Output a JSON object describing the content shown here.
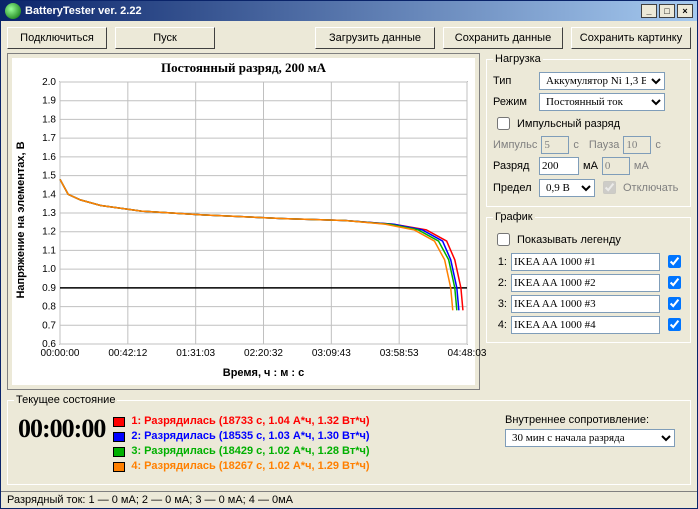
{
  "window": {
    "title": "BatteryTester ver. 2.22"
  },
  "toolbar": {
    "connect": "Подключиться",
    "start": "Пуск",
    "load": "Загрузить данные",
    "save": "Сохранить данные",
    "savepic": "Сохранить картинку"
  },
  "chart": {
    "title": "Постоянный разряд, 200 мА",
    "title_fontsize": 13,
    "ylabel": "Напряжение на элементах, В",
    "xlabel": "Время, ч : м : с",
    "ylim": [
      0.6,
      2.0
    ],
    "yticks": [
      0.6,
      0.7,
      0.8,
      0.9,
      1.0,
      1.1,
      1.2,
      1.3,
      1.4,
      1.5,
      1.6,
      1.7,
      1.8,
      1.9,
      2.0
    ],
    "xticks": [
      "00:00:00",
      "00:42:12",
      "01:31:03",
      "02:20:32",
      "03:09:43",
      "03:58:53",
      "04:48:03"
    ],
    "grid_color": "#c0c0c0",
    "background": "#ffffff",
    "threshold_y": 0.9,
    "threshold_color": "#000000",
    "series": [
      {
        "name": "IKEA AA 1000 #1",
        "color": "#ff0000",
        "x_end_frac": 0.99,
        "points": [
          [
            0,
            1.48
          ],
          [
            0.02,
            1.4
          ],
          [
            0.05,
            1.37
          ],
          [
            0.1,
            1.34
          ],
          [
            0.2,
            1.31
          ],
          [
            0.35,
            1.29
          ],
          [
            0.55,
            1.27
          ],
          [
            0.7,
            1.26
          ],
          [
            0.82,
            1.24
          ],
          [
            0.9,
            1.21
          ],
          [
            0.95,
            1.15
          ],
          [
            0.97,
            1.05
          ],
          [
            0.985,
            0.9
          ],
          [
            0.99,
            0.78
          ]
        ]
      },
      {
        "name": "IKEA AA 1000 #2",
        "color": "#0000ff",
        "x_end_frac": 0.98,
        "points": [
          [
            0,
            1.48
          ],
          [
            0.02,
            1.4
          ],
          [
            0.05,
            1.37
          ],
          [
            0.1,
            1.34
          ],
          [
            0.2,
            1.31
          ],
          [
            0.35,
            1.29
          ],
          [
            0.55,
            1.27
          ],
          [
            0.7,
            1.26
          ],
          [
            0.82,
            1.24
          ],
          [
            0.89,
            1.21
          ],
          [
            0.94,
            1.15
          ],
          [
            0.96,
            1.05
          ],
          [
            0.975,
            0.9
          ],
          [
            0.98,
            0.78
          ]
        ]
      },
      {
        "name": "IKEA AA 1000 #3",
        "color": "#00b000",
        "x_end_frac": 0.975,
        "points": [
          [
            0,
            1.48
          ],
          [
            0.02,
            1.4
          ],
          [
            0.05,
            1.37
          ],
          [
            0.1,
            1.34
          ],
          [
            0.2,
            1.31
          ],
          [
            0.35,
            1.29
          ],
          [
            0.55,
            1.27
          ],
          [
            0.7,
            1.26
          ],
          [
            0.81,
            1.24
          ],
          [
            0.88,
            1.21
          ],
          [
            0.93,
            1.15
          ],
          [
            0.955,
            1.05
          ],
          [
            0.97,
            0.9
          ],
          [
            0.975,
            0.78
          ]
        ]
      },
      {
        "name": "IKEA AA 1000 #4",
        "color": "#ff8000",
        "x_end_frac": 0.965,
        "points": [
          [
            0,
            1.48
          ],
          [
            0.02,
            1.4
          ],
          [
            0.05,
            1.37
          ],
          [
            0.1,
            1.34
          ],
          [
            0.2,
            1.31
          ],
          [
            0.35,
            1.29
          ],
          [
            0.55,
            1.27
          ],
          [
            0.7,
            1.26
          ],
          [
            0.8,
            1.24
          ],
          [
            0.87,
            1.21
          ],
          [
            0.92,
            1.15
          ],
          [
            0.945,
            1.05
          ],
          [
            0.96,
            0.9
          ],
          [
            0.965,
            0.78
          ]
        ]
      }
    ],
    "line_width": 1.5
  },
  "load_group": {
    "legend": "Нагрузка",
    "type_label": "Тип",
    "type_value": "Аккумулятор Ni 1,3 В",
    "mode_label": "Режим",
    "mode_value": "Постоянный ток",
    "pulse_check": "Импульсный разряд",
    "pulse_label": "Импульс",
    "pulse_val": "5",
    "pulse_unit": "с",
    "pause_label": "Пауза",
    "pause_val": "10",
    "pause_unit": "с",
    "discharge_label": "Разряд",
    "discharge_val": "200",
    "discharge_unit": "мА",
    "discharge2_val": "0",
    "discharge2_unit": "мА",
    "limit_label": "Предел",
    "limit_value": "0,9 В",
    "cutoff_check": "Отключать"
  },
  "graph_group": {
    "legend": "График",
    "legend_check": "Показывать легенду",
    "rows": [
      {
        "label": "1:",
        "value": "IKEA AA 1000 #1",
        "checked": true
      },
      {
        "label": "2:",
        "value": "IKEA AA 1000 #2",
        "checked": true
      },
      {
        "label": "3:",
        "value": "IKEA AA 1000 #3",
        "checked": true
      },
      {
        "label": "4:",
        "value": "IKEA AA 1000 #4",
        "checked": true
      }
    ]
  },
  "status_group": {
    "legend": "Текущее состояние",
    "time": "00:00:00",
    "lines": [
      {
        "color": "#ff0000",
        "text_color": "#ff0000",
        "text": "1: Разрядилась (18733 с, 1.04 А*ч, 1.32 Вт*ч)"
      },
      {
        "color": "#0000ff",
        "text_color": "#0000ff",
        "text": "2: Разрядилась (18535 с, 1.03 А*ч, 1.30 Вт*ч)"
      },
      {
        "color": "#00b000",
        "text_color": "#00b000",
        "text": "3: Разрядилась (18429 с, 1.02 А*ч, 1.28 Вт*ч)"
      },
      {
        "color": "#ff8000",
        "text_color": "#ff8000",
        "text": "4: Разрядилась (18267 с, 1.02 А*ч, 1.29 Вт*ч)"
      }
    ],
    "res_label": "Внутреннее сопротивление:",
    "res_value": "30 мин с начала разряда"
  },
  "statusbar": {
    "text": "Разрядный ток: 1 — 0 мА; 2 — 0 мА; 3 — 0 мА; 4 — 0мА"
  }
}
